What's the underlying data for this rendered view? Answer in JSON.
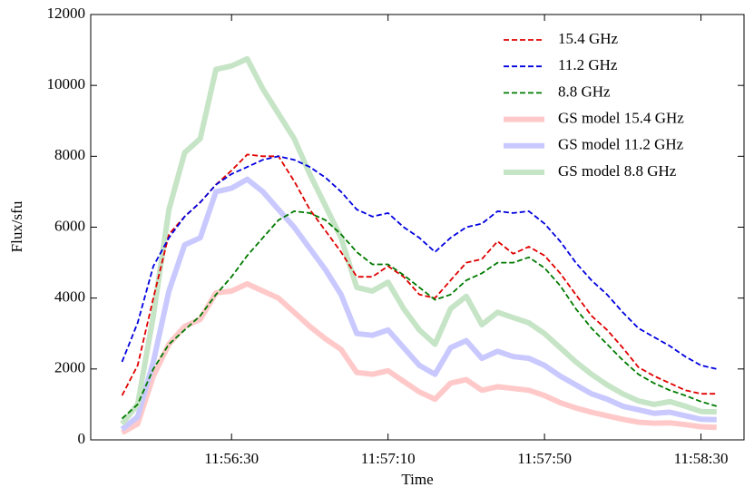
{
  "chart_data": {
    "type": "line",
    "xlabel": "Time",
    "ylabel": "Flux/sfu",
    "x": [
      "11:56:02",
      "11:56:06",
      "11:56:10",
      "11:56:14",
      "11:56:18",
      "11:56:22",
      "11:56:26",
      "11:56:30",
      "11:56:34",
      "11:56:38",
      "11:56:42",
      "11:56:46",
      "11:56:50",
      "11:56:54",
      "11:56:58",
      "11:57:02",
      "11:57:06",
      "11:57:10",
      "11:57:14",
      "11:57:18",
      "11:57:22",
      "11:57:26",
      "11:57:30",
      "11:57:34",
      "11:57:38",
      "11:57:42",
      "11:57:46",
      "11:57:50",
      "11:57:54",
      "11:57:58",
      "11:58:02",
      "11:58:06",
      "11:58:10",
      "11:58:14",
      "11:58:18",
      "11:58:22",
      "11:58:26",
      "11:58:30",
      "11:58:34"
    ],
    "xlim": [
      "11:55:54",
      "11:58:41"
    ],
    "xticks": [
      "11:56:30",
      "11:57:10",
      "11:57:50",
      "11:58:30"
    ],
    "ylim": [
      0,
      12000
    ],
    "yticks": [
      0,
      2000,
      4000,
      6000,
      8000,
      10000,
      12000
    ],
    "legend": "upper right",
    "series": [
      {
        "name": "15.4 GHz",
        "color": "#e00000",
        "style": "dashed",
        "values": [
          1250,
          2100,
          4000,
          5800,
          6300,
          6700,
          7200,
          7600,
          8050,
          8000,
          8000,
          7300,
          6500,
          5900,
          5300,
          4600,
          4600,
          4900,
          4600,
          4100,
          4000,
          4500,
          5000,
          5100,
          5600,
          5250,
          5450,
          5200,
          4700,
          4100,
          3500,
          3100,
          2600,
          2050,
          1800,
          1600,
          1400,
          1300,
          1300
        ]
      },
      {
        "name": "11.2 GHz",
        "color": "#0000e0",
        "style": "dashed",
        "values": [
          2200,
          3300,
          4900,
          5700,
          6300,
          6700,
          7200,
          7500,
          7700,
          7900,
          8000,
          7900,
          7700,
          7400,
          7000,
          6500,
          6300,
          6400,
          6000,
          5700,
          5300,
          5700,
          6000,
          6100,
          6450,
          6400,
          6450,
          6100,
          5600,
          5000,
          4500,
          4100,
          3600,
          3150,
          2900,
          2650,
          2350,
          2100,
          2000
        ]
      },
      {
        "name": "8.8 GHz",
        "color": "#007a00",
        "style": "dashed",
        "values": [
          600,
          1000,
          2000,
          2700,
          3100,
          3500,
          4100,
          4600,
          5200,
          5700,
          6200,
          6450,
          6400,
          6200,
          5800,
          5300,
          4950,
          4950,
          4650,
          4300,
          3950,
          4100,
          4500,
          4700,
          5000,
          5000,
          5150,
          4850,
          4350,
          3700,
          3150,
          2700,
          2250,
          1850,
          1600,
          1400,
          1250,
          1080,
          950
        ]
      },
      {
        "name": "GS model 15.4 GHz",
        "color": "#ffc9c9",
        "style": "solid",
        "values": [
          200,
          450,
          1800,
          2700,
          3200,
          3400,
          4150,
          4200,
          4400,
          4200,
          4000,
          3600,
          3200,
          2850,
          2550,
          1900,
          1850,
          1950,
          1650,
          1350,
          1150,
          1600,
          1700,
          1400,
          1500,
          1450,
          1400,
          1250,
          1050,
          900,
          780,
          680,
          580,
          500,
          470,
          480,
          430,
          370,
          350
        ]
      },
      {
        "name": "GS model 11.2 GHz",
        "color": "#c9c9ff",
        "style": "solid",
        "values": [
          300,
          650,
          2200,
          4200,
          5500,
          5700,
          7000,
          7100,
          7350,
          7000,
          6500,
          6000,
          5400,
          4800,
          4100,
          3000,
          2950,
          3100,
          2600,
          2100,
          1850,
          2600,
          2800,
          2300,
          2500,
          2350,
          2300,
          2100,
          1800,
          1550,
          1300,
          1150,
          950,
          850,
          750,
          780,
          680,
          580,
          570
        ]
      },
      {
        "name": "GS model 8.8 GHz",
        "color": "#c6e4c6",
        "style": "solid",
        "values": [
          450,
          1000,
          3500,
          6500,
          8100,
          8500,
          10450,
          10550,
          10750,
          9900,
          9200,
          8500,
          7500,
          6600,
          5700,
          4300,
          4200,
          4450,
          3700,
          3100,
          2700,
          3700,
          4050,
          3250,
          3600,
          3450,
          3300,
          3000,
          2600,
          2200,
          1850,
          1550,
          1300,
          1100,
          1000,
          1080,
          950,
          800,
          790
        ]
      }
    ]
  }
}
